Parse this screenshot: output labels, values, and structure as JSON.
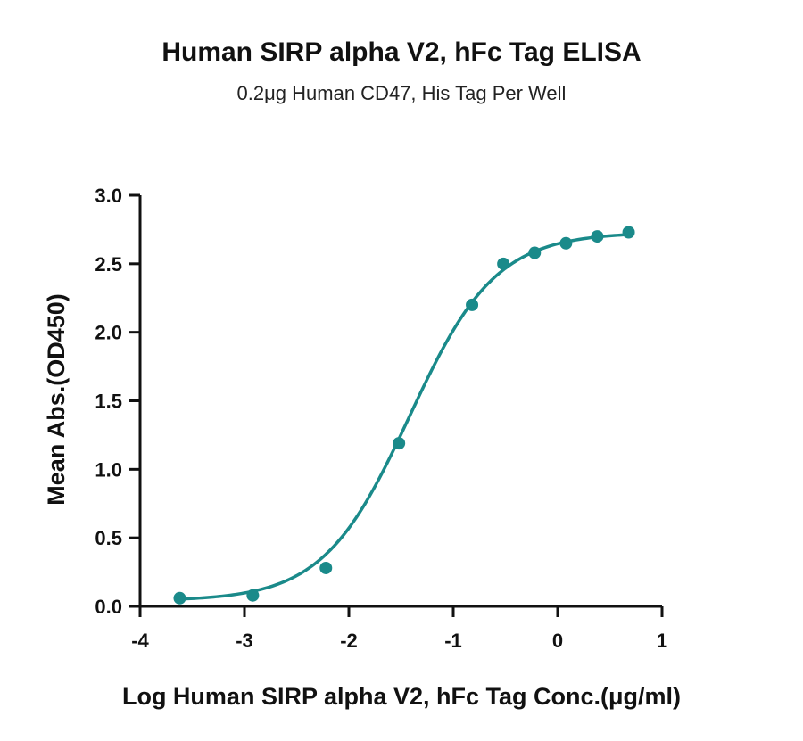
{
  "chart_data": {
    "type": "scatter",
    "title": "Human SIRP alpha V2, hFc Tag ELISA",
    "subtitle": "0.2μg Human CD47, His Tag Per Well",
    "xlabel": "Log Human SIRP alpha V2, hFc Tag Conc.(μg/ml)",
    "ylabel": "Mean Abs.(OD450)",
    "xlim": [
      -4,
      1
    ],
    "ylim": [
      0,
      3.0
    ],
    "x_ticks": [
      -4,
      -3,
      -2,
      -1,
      0,
      1
    ],
    "x_tick_labels": [
      "-4",
      "-3",
      "-2",
      "-1",
      "0",
      "1"
    ],
    "y_ticks": [
      0,
      0.5,
      1.0,
      1.5,
      2.0,
      2.5,
      3.0
    ],
    "y_tick_labels": [
      "0.0",
      "0.5",
      "1.0",
      "1.5",
      "2.0",
      "2.5",
      "3.0"
    ],
    "grid": false,
    "color": "#1a8a8a",
    "x": [
      -3.62,
      -2.92,
      -2.22,
      -1.52,
      -0.82,
      -0.52,
      -0.22,
      0.08,
      0.38,
      0.68
    ],
    "y": [
      0.06,
      0.08,
      0.28,
      1.19,
      2.2,
      2.5,
      2.58,
      2.65,
      2.7,
      2.73
    ],
    "fit": {
      "bottom": 0.04,
      "top": 2.73,
      "logEC50": -1.42,
      "hill": 1.05
    }
  }
}
